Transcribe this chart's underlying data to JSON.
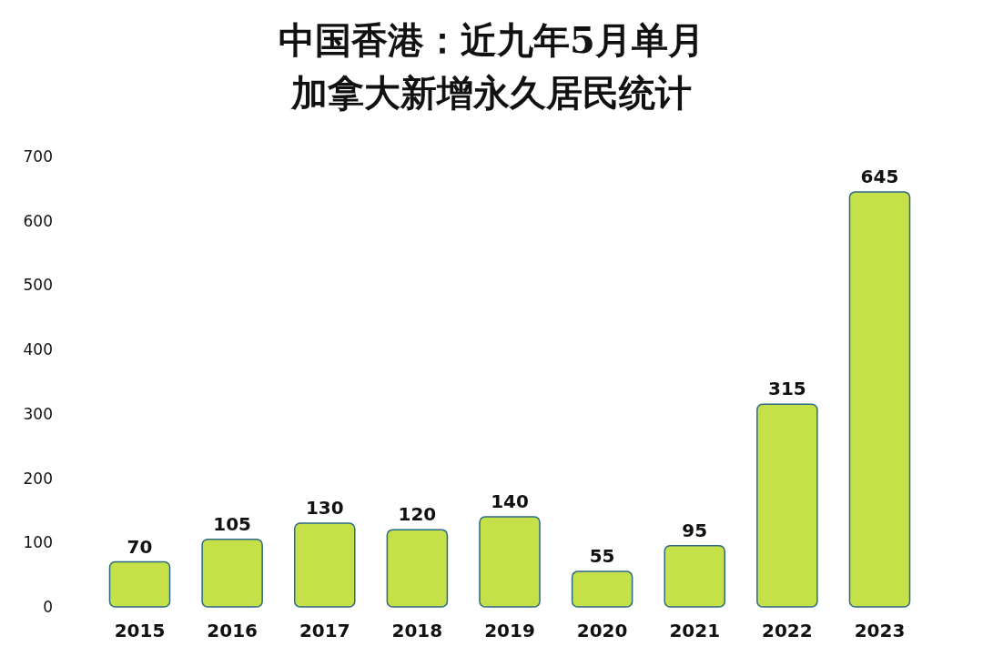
{
  "chart_data": {
    "type": "bar",
    "title": "中国香港：近九年5月单月加拿大新增永久居民统计",
    "categories": [
      "2015",
      "2016",
      "2017",
      "2018",
      "2019",
      "2020",
      "2021",
      "2022",
      "2023"
    ],
    "values": [
      70,
      105,
      130,
      120,
      140,
      55,
      95,
      315,
      645
    ],
    "color": "#c6e04a",
    "ylim": [
      0,
      700
    ],
    "yticks": [
      0,
      100,
      200,
      300,
      400,
      500,
      600,
      700
    ],
    "data_labels": true,
    "grid": false
  }
}
